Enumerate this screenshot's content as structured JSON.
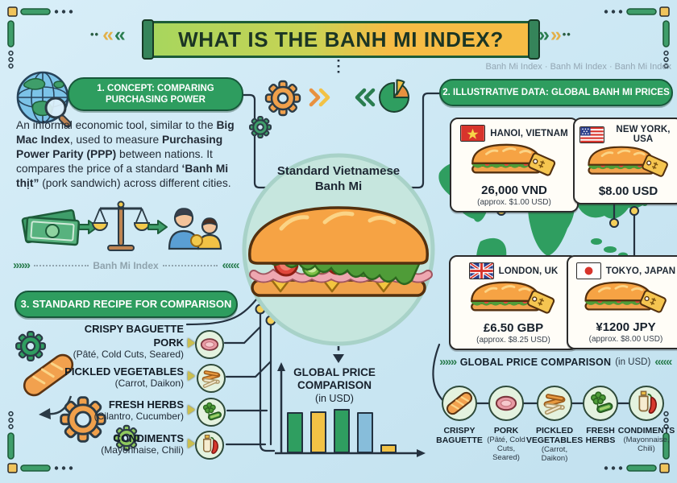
{
  "page": {
    "title": "WHAT IS THE BANH MI INDEX?",
    "watermark": "Banh Mi Index · Banh Mi Index · Banh Mi Index"
  },
  "deco": {
    "title_left_dots": "••",
    "title_left_chev_yellow": "«",
    "title_left_chev_green": "«",
    "title_right_chev_green": "»",
    "title_right_chev_yellow": "»",
    "title_right_dots": "••",
    "flow_left": "»»»",
    "flow_right": "«««",
    "cmp_left": "»»»",
    "cmp_right": "«««"
  },
  "concept": {
    "badge": "1. CONCEPT: COMPARING PURCHASING POWER",
    "desc": [
      {
        "text": "An informal economic tool, similar to the ",
        "bold": false
      },
      {
        "text": "Big Mac Index",
        "bold": true
      },
      {
        "text": ", used to measure ",
        "bold": false
      },
      {
        "text": "Purchasing Power Parity (PPP)",
        "bold": true
      },
      {
        "text": " between nations. It compares the price of a standard ",
        "bold": false
      },
      {
        "text": "‘Banh Mi thịt”",
        "bold": true
      },
      {
        "text": " (pork sandwich) across different cities.",
        "bold": false
      }
    ],
    "flow_label": "Banh Mi Index"
  },
  "center": {
    "label": "Standard Vietnamese Banh Mi"
  },
  "prices": {
    "badge": "2. ILLUSTRATIVE DATA: GLOBAL BANH MI PRICES",
    "cards": [
      {
        "city": "HANOI, VIETNAM",
        "flag": "vietnam-flag",
        "price": "26,000 VND",
        "approx": "(approx. $1.00 USD)"
      },
      {
        "city": "NEW YORK, USA",
        "flag": "usa-flag",
        "price": "$8.00 USD",
        "approx": ""
      },
      {
        "city": "LONDON, UK",
        "flag": "uk-flag",
        "price": "£6.50 GBP",
        "approx": "(approx. $8.25 USD)"
      },
      {
        "city": "TOKYO, JAPAN",
        "flag": "japan-flag",
        "price": "¥1200 JPY",
        "approx": "(approx. $8.00 USD)"
      }
    ]
  },
  "recipe": {
    "badge": "3. STANDARD RECIPE FOR COMPARISON",
    "items": [
      {
        "name": "CRISPY BAGUETTE",
        "detail": ""
      },
      {
        "name": "PORK",
        "detail": "(Pâté, Cold Cuts, Seared)"
      },
      {
        "name": "PICKLED VEGETABLES",
        "detail": "(Carrot, Daikon)"
      },
      {
        "name": "FRESH HERBS",
        "detail": "(Cilantro, Cucumber)"
      },
      {
        "name": "CONDIMENTS",
        "detail": "(Mayonnaise, Chili)"
      }
    ]
  },
  "chart": {
    "title_line1": "GLOBAL PRICE",
    "title_line2": "COMPARISON",
    "title_line3": "(in USD)"
  },
  "chart_data": {
    "type": "bar",
    "title": "GLOBAL PRICE COMPARISON (in USD)",
    "categories": [
      "",
      "",
      "",
      "",
      ""
    ],
    "values_relative": [
      0.93,
      0.95,
      1.0,
      0.93,
      0.2
    ],
    "colors": [
      "#2f9e60",
      "#f2c245",
      "#2f9e60",
      "#87bdda",
      "#f2c245"
    ],
    "ylim": [
      0,
      1
    ],
    "grid": false,
    "axis_tick_labels": false
  },
  "comparison": {
    "header": "GLOBAL PRICE COMPARISON",
    "header_suffix": "(in USD)",
    "items": [
      {
        "name": "CRISPY BAGUETTE",
        "detail": ""
      },
      {
        "name": "PORK",
        "detail": "(Pâté, Cold Cuts, Seared)"
      },
      {
        "name": "PICKLED VEGETABLES",
        "detail": "(Carrot, Daikon)"
      },
      {
        "name": "FRESH HERBS",
        "detail": ""
      },
      {
        "name": "CONDIMENTS",
        "detail": "(Mayonnaise, Chili)"
      }
    ]
  },
  "colors": {
    "background": "#cfe9f5",
    "accent_green": "#2e9d5f",
    "accent_yellow": "#f2c245",
    "accent_orange": "#ee9a3f",
    "map_green": "#2f9e60",
    "line_dark": "#24313f",
    "bar_blue": "#87bdda"
  }
}
